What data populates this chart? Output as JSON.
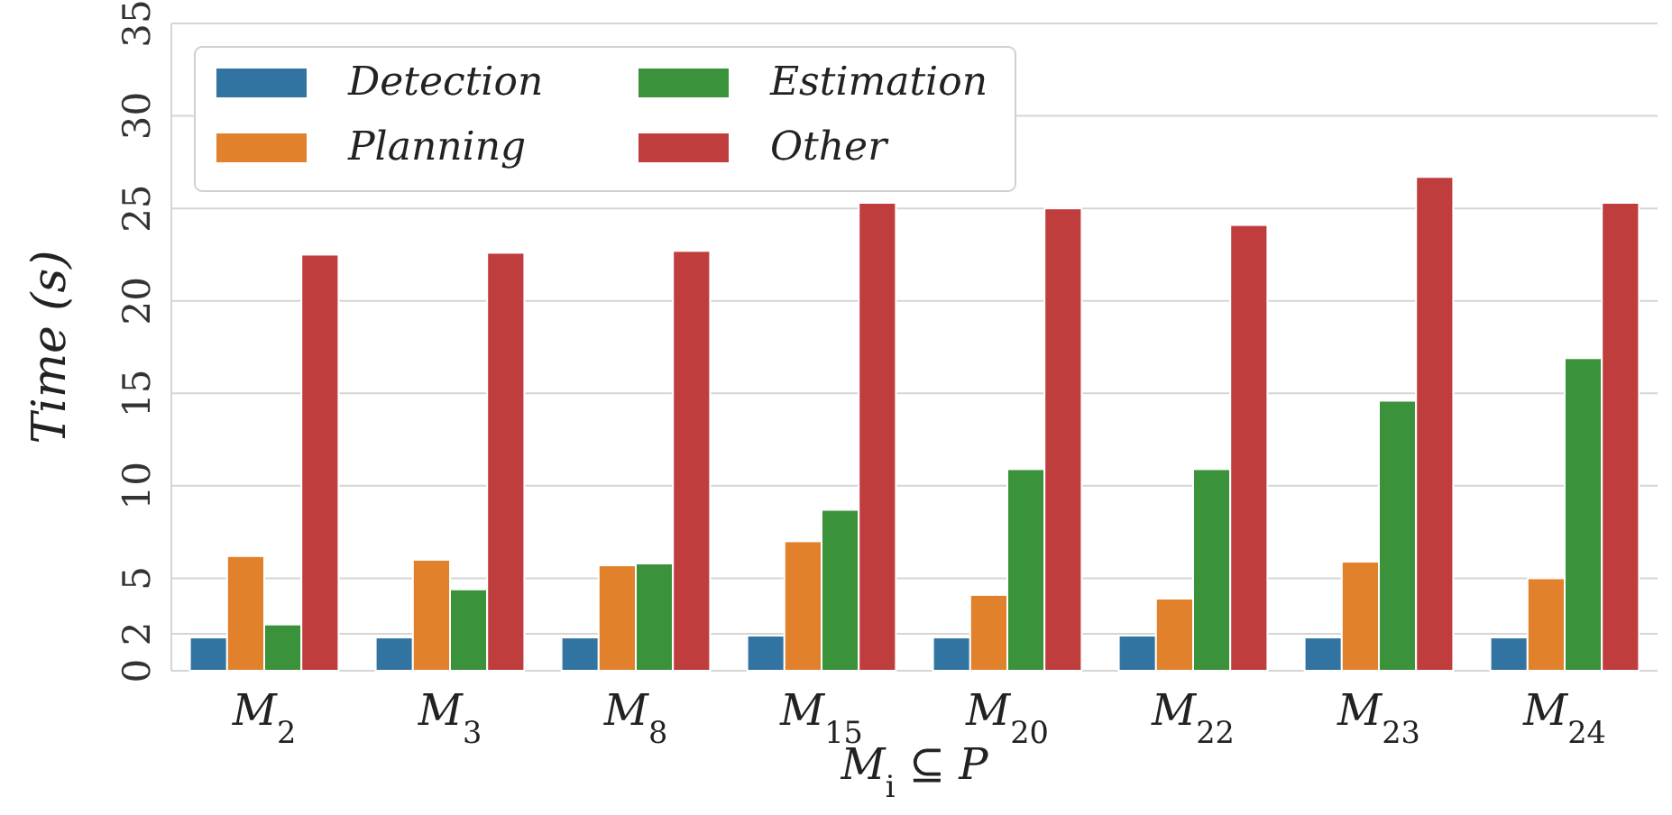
{
  "chart_data": {
    "type": "bar",
    "xlabel": "M$_{i}$ ⊆ P",
    "ylabel": "Time (s)",
    "categories": [
      "M$_{2}$",
      "M$_{3}$",
      "M$_{8}$",
      "M$_{15}$",
      "M$_{20}$",
      "M$_{22}$",
      "M$_{23}$",
      "M$_{24}$"
    ],
    "series": [
      {
        "name": "Detection",
        "color": "#3274a1",
        "values": [
          1.8,
          1.8,
          1.8,
          1.9,
          1.8,
          1.9,
          1.8,
          1.8
        ]
      },
      {
        "name": "Planning",
        "color": "#e1812c",
        "values": [
          6.2,
          6.0,
          5.7,
          7.0,
          4.1,
          3.9,
          5.9,
          5.0
        ]
      },
      {
        "name": "Estimation",
        "color": "#3a923a",
        "values": [
          2.5,
          4.4,
          5.8,
          8.7,
          10.9,
          10.9,
          14.6,
          16.9
        ]
      },
      {
        "name": "Other",
        "color": "#c03d3e",
        "values": [
          22.5,
          22.6,
          22.7,
          25.3,
          25.0,
          24.1,
          26.7,
          25.3
        ]
      }
    ],
    "ylim": [
      0,
      35
    ],
    "yticks": [
      0,
      2,
      5,
      10,
      15,
      20,
      25,
      30,
      35
    ],
    "grid": "y",
    "legend": "top left"
  }
}
